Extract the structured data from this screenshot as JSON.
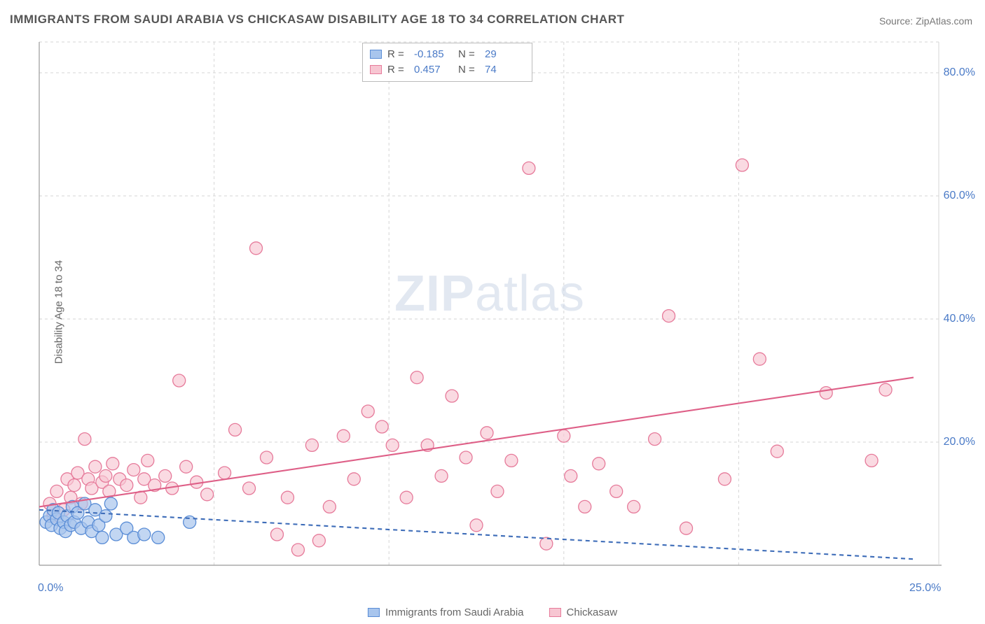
{
  "title": "IMMIGRANTS FROM SAUDI ARABIA VS CHICKASAW DISABILITY AGE 18 TO 34 CORRELATION CHART",
  "source": "Source: ZipAtlas.com",
  "ylabel": "Disability Age 18 to 34",
  "watermark_bold": "ZIP",
  "watermark_light": "atlas",
  "background_color": "#ffffff",
  "grid_color": "#d6d6d6",
  "axis_color": "#999999",
  "tick_color": "#4a7ac7",
  "xlim": [
    0,
    25
  ],
  "ylim": [
    0,
    85
  ],
  "xticks": [
    {
      "x": 0,
      "label": "0.0%"
    },
    {
      "x": 25,
      "label": "25.0%"
    }
  ],
  "yticks": [
    {
      "y": 20,
      "label": "20.0%"
    },
    {
      "y": 40,
      "label": "40.0%"
    },
    {
      "y": 60,
      "label": "60.0%"
    },
    {
      "y": 80,
      "label": "80.0%"
    }
  ],
  "xgrid": [
    5,
    10,
    15,
    20
  ],
  "series": {
    "blue": {
      "name": "Immigrants from Saudi Arabia",
      "label_short": "immigrants-saudi",
      "fill": "#a8c5ed",
      "stroke": "#5a8dd6",
      "line_color": "#3d6cb8",
      "marker_r": 9,
      "marker_opacity": 0.7,
      "R": "-0.185",
      "N": "29",
      "regression": {
        "x1": 0,
        "y1": 9.0,
        "x2": 25,
        "y2": 1.0,
        "dashed": true
      },
      "data": [
        [
          0.2,
          7
        ],
        [
          0.3,
          8
        ],
        [
          0.35,
          6.5
        ],
        [
          0.4,
          9
        ],
        [
          0.5,
          7.5
        ],
        [
          0.55,
          8.5
        ],
        [
          0.6,
          6
        ],
        [
          0.7,
          7
        ],
        [
          0.75,
          5.5
        ],
        [
          0.8,
          8
        ],
        [
          0.9,
          6.5
        ],
        [
          0.95,
          9.5
        ],
        [
          1.0,
          7
        ],
        [
          1.1,
          8.5
        ],
        [
          1.2,
          6
        ],
        [
          1.3,
          10
        ],
        [
          1.4,
          7
        ],
        [
          1.5,
          5.5
        ],
        [
          1.6,
          9
        ],
        [
          1.7,
          6.5
        ],
        [
          1.8,
          4.5
        ],
        [
          1.9,
          8
        ],
        [
          2.05,
          10
        ],
        [
          2.2,
          5
        ],
        [
          2.5,
          6
        ],
        [
          2.7,
          4.5
        ],
        [
          3.0,
          5
        ],
        [
          3.4,
          4.5
        ],
        [
          4.3,
          7
        ]
      ]
    },
    "pink": {
      "name": "Chickasaw",
      "label_short": "chickasaw",
      "fill": "#f7c6d2",
      "stroke": "#e67a9a",
      "line_color": "#de5f87",
      "marker_r": 9,
      "marker_opacity": 0.65,
      "R": "0.457",
      "N": "74",
      "regression": {
        "x1": 0,
        "y1": 9.5,
        "x2": 25,
        "y2": 30.5,
        "dashed": false
      },
      "data": [
        [
          0.3,
          10
        ],
        [
          0.4,
          8
        ],
        [
          0.5,
          12
        ],
        [
          0.7,
          9
        ],
        [
          0.8,
          14
        ],
        [
          0.9,
          11
        ],
        [
          1.0,
          13
        ],
        [
          1.1,
          15
        ],
        [
          1.2,
          10
        ],
        [
          1.3,
          20.5
        ],
        [
          1.4,
          14
        ],
        [
          1.5,
          12.5
        ],
        [
          1.6,
          16
        ],
        [
          1.8,
          13.5
        ],
        [
          1.9,
          14.5
        ],
        [
          2.0,
          12
        ],
        [
          2.1,
          16.5
        ],
        [
          2.3,
          14
        ],
        [
          2.5,
          13
        ],
        [
          2.7,
          15.5
        ],
        [
          2.9,
          11
        ],
        [
          3.0,
          14
        ],
        [
          3.1,
          17
        ],
        [
          3.3,
          13
        ],
        [
          3.6,
          14.5
        ],
        [
          3.8,
          12.5
        ],
        [
          4.0,
          30
        ],
        [
          4.2,
          16
        ],
        [
          4.5,
          13.5
        ],
        [
          4.8,
          11.5
        ],
        [
          5.3,
          15
        ],
        [
          5.6,
          22
        ],
        [
          6.0,
          12.5
        ],
        [
          6.2,
          51.5
        ],
        [
          6.5,
          17.5
        ],
        [
          6.8,
          5
        ],
        [
          7.1,
          11
        ],
        [
          7.4,
          2.5
        ],
        [
          7.8,
          19.5
        ],
        [
          8.0,
          4
        ],
        [
          8.3,
          9.5
        ],
        [
          8.7,
          21
        ],
        [
          9.0,
          14
        ],
        [
          9.4,
          25
        ],
        [
          9.8,
          22.5
        ],
        [
          10.1,
          19.5
        ],
        [
          10.5,
          11
        ],
        [
          10.8,
          30.5
        ],
        [
          11.1,
          19.5
        ],
        [
          11.5,
          14.5
        ],
        [
          11.8,
          27.5
        ],
        [
          12.2,
          17.5
        ],
        [
          12.5,
          6.5
        ],
        [
          12.8,
          21.5
        ],
        [
          13.1,
          12
        ],
        [
          13.5,
          17
        ],
        [
          14.0,
          64.5
        ],
        [
          14.5,
          3.5
        ],
        [
          15.0,
          21
        ],
        [
          15.2,
          14.5
        ],
        [
          15.6,
          9.5
        ],
        [
          16.0,
          16.5
        ],
        [
          16.5,
          12
        ],
        [
          17.0,
          9.5
        ],
        [
          17.6,
          20.5
        ],
        [
          18.0,
          40.5
        ],
        [
          18.5,
          6
        ],
        [
          19.6,
          14
        ],
        [
          20.1,
          65
        ],
        [
          20.6,
          33.5
        ],
        [
          21.1,
          18.5
        ],
        [
          22.5,
          28
        ],
        [
          23.8,
          17
        ],
        [
          24.2,
          28.5
        ]
      ]
    }
  },
  "stats_box": {
    "rows": [
      {
        "series": "blue"
      },
      {
        "series": "pink"
      }
    ],
    "r_label": "R = ",
    "n_label": "N = "
  },
  "legend_order": [
    "blue",
    "pink"
  ]
}
